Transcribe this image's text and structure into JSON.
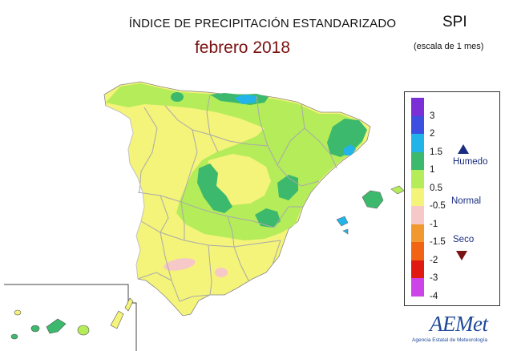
{
  "header": {
    "title": "ÍNDICE DE PRECIPITACIÓN ESTANDARIZADO",
    "subtitle": "febrero 2018",
    "index_name": "SPI",
    "scale_note": "(escala de 1 mes)"
  },
  "legend": {
    "ticks": [
      "3",
      "2",
      "1.5",
      "1",
      "0.5",
      "-0.5",
      "-1",
      "-1.5",
      "-2",
      "-3",
      "-4"
    ],
    "classes": [
      {
        "range": "> 3",
        "color": "#7b2fd6"
      },
      {
        "range": "2 – 3",
        "color": "#3d4fe0"
      },
      {
        "range": "1.5 – 2",
        "color": "#22b4e8"
      },
      {
        "range": "1 – 1.5",
        "color": "#3cb96c"
      },
      {
        "range": "0.5 – 1",
        "color": "#b4ec5a"
      },
      {
        "range": "-0.5 – 0.5",
        "color": "#f4f37a"
      },
      {
        "range": "-1 – -0.5",
        "color": "#f6c8c8"
      },
      {
        "range": "-1.5 – -1",
        "color": "#f29830"
      },
      {
        "range": "-2 – -1.5",
        "color": "#f06414"
      },
      {
        "range": "-3 – -2",
        "color": "#e01a10"
      },
      {
        "range": "< -3",
        "color": "#cc44e8"
      }
    ],
    "categories": {
      "wet": "Humedo",
      "normal": "Normal",
      "dry": "Seco"
    },
    "wet_color": "#1a2d80",
    "dry_color": "#7a1414"
  },
  "map": {
    "dominant_class": "-0.5 – 0.5",
    "secondary_class": "0.5 – 1",
    "regions": "Península Ibérica (España), Islas Baleares, Islas Canarias"
  },
  "logo": {
    "name": "AEMet",
    "tagline": "Agencia Estatal de Meteorología"
  }
}
